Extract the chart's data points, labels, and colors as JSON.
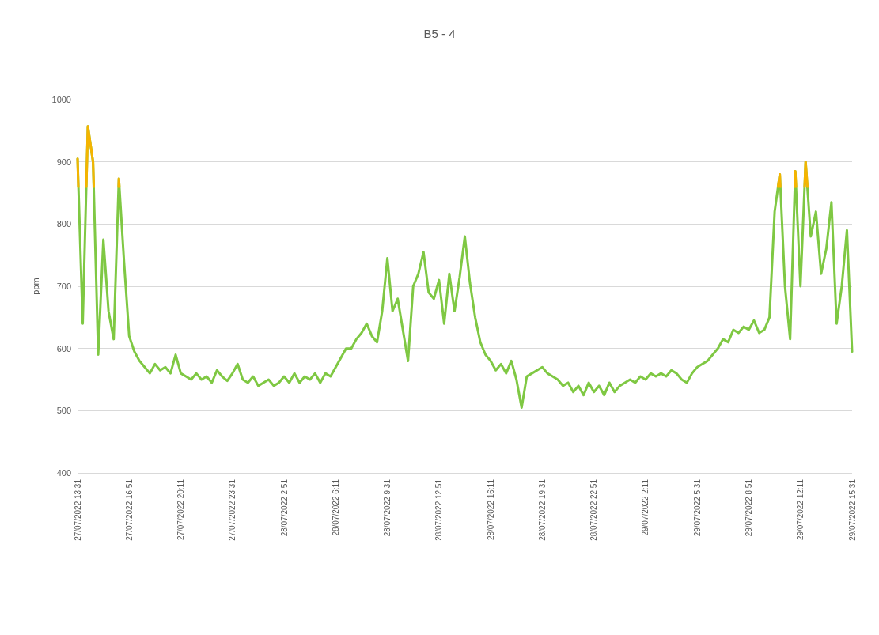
{
  "chart_data": {
    "type": "line",
    "title": "B5 - 4",
    "ylabel": "ppm",
    "ylim": [
      400,
      1000
    ],
    "yticks": [
      400,
      500,
      600,
      700,
      800,
      900,
      1000
    ],
    "grid": "y",
    "marker": "none",
    "line_style": "solid",
    "xlim": [
      "2022-07-27T13:31",
      "2022-07-29T15:31"
    ],
    "xticks": [
      {
        "value": "2022-07-27T13:31",
        "label": "27/07/2022 13:31"
      },
      {
        "value": "2022-07-27T16:51",
        "label": "27/07/2022 16:51"
      },
      {
        "value": "2022-07-27T20:11",
        "label": "27/07/2022 20:11"
      },
      {
        "value": "2022-07-27T23:31",
        "label": "27/07/2022 23:31"
      },
      {
        "value": "2022-07-28T02:51",
        "label": "28/07/2022 2:51"
      },
      {
        "value": "2022-07-28T06:11",
        "label": "28/07/2022 6:11"
      },
      {
        "value": "2022-07-28T09:31",
        "label": "28/07/2022 9:31"
      },
      {
        "value": "2022-07-28T12:51",
        "label": "28/07/2022 12:51"
      },
      {
        "value": "2022-07-28T16:11",
        "label": "28/07/2022 16:11"
      },
      {
        "value": "2022-07-28T19:31",
        "label": "28/07/2022 19:31"
      },
      {
        "value": "2022-07-28T22:51",
        "label": "28/07/2022 22:51"
      },
      {
        "value": "2022-07-29T02:11",
        "label": "29/07/2022 2:11"
      },
      {
        "value": "2022-07-29T05:31",
        "label": "29/07/2022 5:31"
      },
      {
        "value": "2022-07-29T08:51",
        "label": "29/07/2022 8:51"
      },
      {
        "value": "2022-07-29T12:11",
        "label": "29/07/2022 12:11"
      },
      {
        "value": "2022-07-29T15:31",
        "label": "29/07/2022 15:31"
      }
    ],
    "x": [
      "2022-07-27T13:31",
      "2022-07-27T13:51",
      "2022-07-27T14:11",
      "2022-07-27T14:31",
      "2022-07-27T14:51",
      "2022-07-27T15:11",
      "2022-07-27T15:31",
      "2022-07-27T15:51",
      "2022-07-27T16:11",
      "2022-07-27T16:31",
      "2022-07-27T16:51",
      "2022-07-27T17:11",
      "2022-07-27T17:31",
      "2022-07-27T17:51",
      "2022-07-27T18:11",
      "2022-07-27T18:31",
      "2022-07-27T18:51",
      "2022-07-27T19:11",
      "2022-07-27T19:31",
      "2022-07-27T19:51",
      "2022-07-27T20:11",
      "2022-07-27T20:31",
      "2022-07-27T20:51",
      "2022-07-27T21:11",
      "2022-07-27T21:31",
      "2022-07-27T21:51",
      "2022-07-27T22:11",
      "2022-07-27T22:31",
      "2022-07-27T22:51",
      "2022-07-27T23:11",
      "2022-07-27T23:31",
      "2022-07-27T23:51",
      "2022-07-28T00:11",
      "2022-07-28T00:31",
      "2022-07-28T00:51",
      "2022-07-28T01:11",
      "2022-07-28T01:31",
      "2022-07-28T01:51",
      "2022-07-28T02:11",
      "2022-07-28T02:31",
      "2022-07-28T02:51",
      "2022-07-28T03:11",
      "2022-07-28T03:31",
      "2022-07-28T03:51",
      "2022-07-28T04:11",
      "2022-07-28T04:31",
      "2022-07-28T04:51",
      "2022-07-28T05:11",
      "2022-07-28T05:31",
      "2022-07-28T05:51",
      "2022-07-28T06:11",
      "2022-07-28T06:31",
      "2022-07-28T06:51",
      "2022-07-28T07:11",
      "2022-07-28T07:31",
      "2022-07-28T07:51",
      "2022-07-28T08:11",
      "2022-07-28T08:31",
      "2022-07-28T08:51",
      "2022-07-28T09:11",
      "2022-07-28T09:31",
      "2022-07-28T09:51",
      "2022-07-28T10:11",
      "2022-07-28T10:31",
      "2022-07-28T10:51",
      "2022-07-28T11:11",
      "2022-07-28T11:31",
      "2022-07-28T11:51",
      "2022-07-28T12:11",
      "2022-07-28T12:31",
      "2022-07-28T12:51",
      "2022-07-28T13:11",
      "2022-07-28T13:31",
      "2022-07-28T13:51",
      "2022-07-28T14:11",
      "2022-07-28T14:31",
      "2022-07-28T14:51",
      "2022-07-28T15:11",
      "2022-07-28T15:31",
      "2022-07-28T15:51",
      "2022-07-28T16:11",
      "2022-07-28T16:31",
      "2022-07-28T16:51",
      "2022-07-28T17:11",
      "2022-07-28T17:31",
      "2022-07-28T17:51",
      "2022-07-28T18:11",
      "2022-07-28T18:31",
      "2022-07-28T18:51",
      "2022-07-28T19:11",
      "2022-07-28T19:31",
      "2022-07-28T19:51",
      "2022-07-28T20:11",
      "2022-07-28T20:31",
      "2022-07-28T20:51",
      "2022-07-28T21:11",
      "2022-07-28T21:31",
      "2022-07-28T21:51",
      "2022-07-28T22:11",
      "2022-07-28T22:31",
      "2022-07-28T22:51",
      "2022-07-28T23:11",
      "2022-07-28T23:31",
      "2022-07-28T23:51",
      "2022-07-29T00:11",
      "2022-07-29T00:31",
      "2022-07-29T00:51",
      "2022-07-29T01:11",
      "2022-07-29T01:31",
      "2022-07-29T01:51",
      "2022-07-29T02:11",
      "2022-07-29T02:31",
      "2022-07-29T02:51",
      "2022-07-29T03:11",
      "2022-07-29T03:31",
      "2022-07-29T03:51",
      "2022-07-29T04:11",
      "2022-07-29T04:31",
      "2022-07-29T04:51",
      "2022-07-29T05:11",
      "2022-07-29T05:31",
      "2022-07-29T05:51",
      "2022-07-29T06:11",
      "2022-07-29T06:31",
      "2022-07-29T06:51",
      "2022-07-29T07:11",
      "2022-07-29T07:31",
      "2022-07-29T07:51",
      "2022-07-29T08:11",
      "2022-07-29T08:31",
      "2022-07-29T08:51",
      "2022-07-29T09:11",
      "2022-07-29T09:31",
      "2022-07-29T09:51",
      "2022-07-29T10:11",
      "2022-07-29T10:31",
      "2022-07-29T10:51",
      "2022-07-29T11:11",
      "2022-07-29T11:31",
      "2022-07-29T11:51",
      "2022-07-29T12:11",
      "2022-07-29T12:31",
      "2022-07-29T12:51",
      "2022-07-29T13:11",
      "2022-07-29T13:31",
      "2022-07-29T13:51",
      "2022-07-29T14:11",
      "2022-07-29T14:31",
      "2022-07-29T14:51",
      "2022-07-29T15:11",
      "2022-07-29T15:31"
    ],
    "series": [
      {
        "color": "#7fc843",
        "values": [
          905,
          640,
          957,
          900,
          590,
          775,
          660,
          615,
          873,
          740,
          620,
          595,
          580,
          570,
          560,
          575,
          565,
          570,
          560,
          590,
          560,
          555,
          550,
          560,
          550,
          555,
          545,
          565,
          555,
          548,
          560,
          575,
          550,
          545,
          555,
          540,
          545,
          550,
          540,
          545,
          555,
          545,
          560,
          545,
          555,
          550,
          560,
          545,
          560,
          555,
          570,
          585,
          600,
          600,
          615,
          625,
          640,
          620,
          610,
          660,
          745,
          660,
          680,
          630,
          580,
          700,
          720,
          755,
          690,
          680,
          710,
          640,
          720,
          660,
          715,
          780,
          705,
          650,
          610,
          590,
          580,
          565,
          575,
          560,
          580,
          550,
          505,
          555,
          560,
          565,
          570,
          560,
          555,
          550,
          540,
          545,
          530,
          540,
          525,
          545,
          530,
          540,
          525,
          545,
          530,
          540,
          545,
          550,
          545,
          555,
          550,
          560,
          555,
          560,
          555,
          565,
          560,
          550,
          545,
          560,
          570,
          575,
          580,
          590,
          600,
          615,
          610,
          630,
          625,
          635,
          630,
          645,
          625,
          630,
          650,
          820,
          880,
          700,
          615,
          885,
          700,
          900,
          780,
          820,
          720,
          760,
          835,
          640,
          700,
          790,
          595
        ]
      },
      {
        "color": "#f5b400",
        "x": [
          "2022-07-27T13:31",
          "2022-07-27T13:34",
          "2022-07-27T13:40",
          "2022-07-27T14:05",
          "2022-07-27T14:11",
          "2022-07-27T14:31",
          "2022-07-27T14:34",
          "2022-07-27T15:00",
          "2022-07-27T16:10",
          "2022-07-27T16:11",
          "2022-07-27T16:13",
          "2022-07-29T10:00",
          "2022-07-29T10:44",
          "2022-07-29T10:51",
          "2022-07-29T10:53",
          "2022-07-29T11:20",
          "2022-07-29T11:49",
          "2022-07-29T11:51",
          "2022-07-29T11:54",
          "2022-07-29T12:10",
          "2022-07-29T12:27",
          "2022-07-29T12:31",
          "2022-07-29T12:38"
        ],
        "values": [
          905,
          860,
          null,
          860,
          957,
          900,
          860,
          null,
          860,
          873,
          860,
          null,
          860,
          880,
          860,
          null,
          860,
          885,
          860,
          null,
          860,
          900,
          860
        ]
      }
    ]
  }
}
